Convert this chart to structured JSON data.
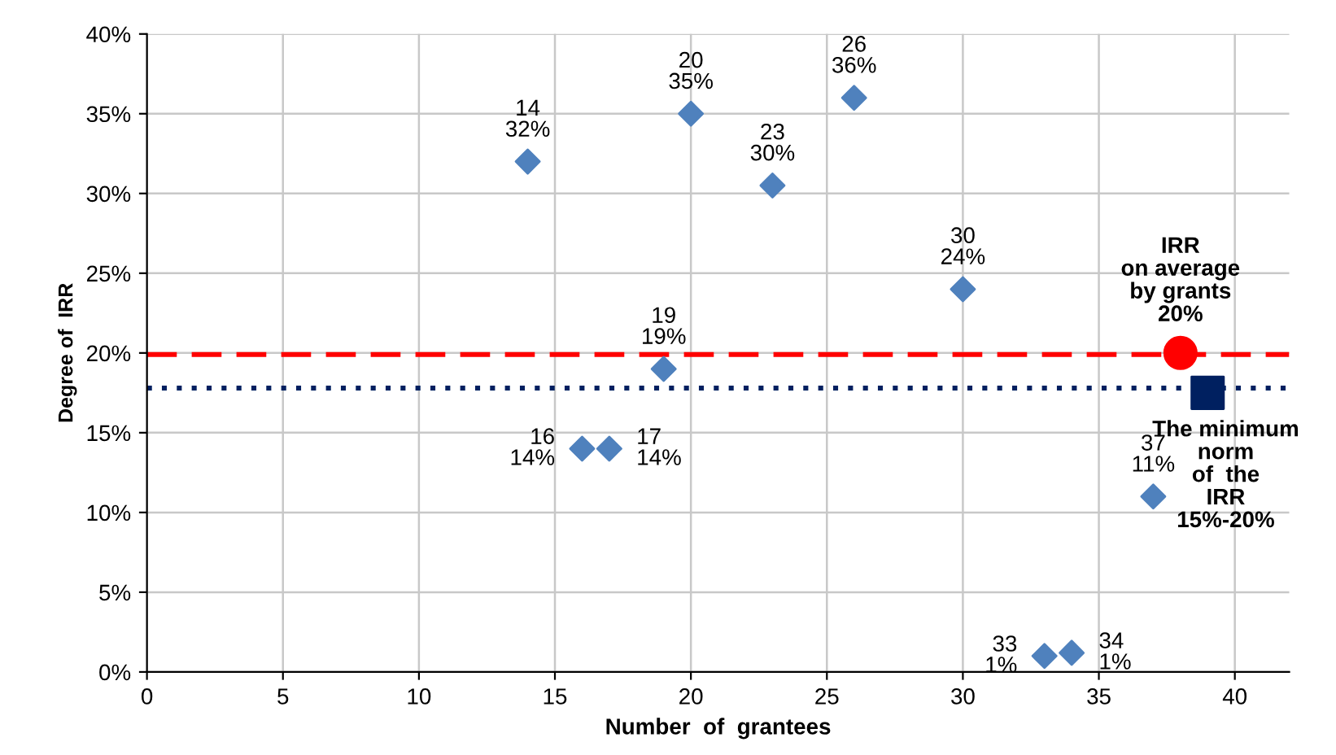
{
  "chart_data": {
    "type": "scatter",
    "xlabel": "Number  of  grantees",
    "ylabel": "Degree of  IRR",
    "xlim": [
      0,
      42
    ],
    "xticks": [
      0,
      5,
      10,
      15,
      20,
      25,
      30,
      35,
      40
    ],
    "ylim": [
      0,
      40
    ],
    "yticks": [
      {
        "value": 0,
        "label": "0%"
      },
      {
        "value": 5,
        "label": "5%"
      },
      {
        "value": 10,
        "label": "10%"
      },
      {
        "value": 15,
        "label": "15%"
      },
      {
        "value": 20,
        "label": "20%"
      },
      {
        "value": 25,
        "label": "25%"
      },
      {
        "value": 30,
        "label": "30%"
      },
      {
        "value": 35,
        "label": "35%"
      },
      {
        "value": 40,
        "label": "40%"
      }
    ],
    "grid": true,
    "series": [
      {
        "color": "#4f81bd",
        "marker": "diamond",
        "x": [
          14,
          16,
          17,
          19,
          20,
          23,
          26,
          30,
          33,
          34,
          37
        ],
        "values": [
          32,
          14,
          14,
          19,
          35,
          30.5,
          36,
          24,
          1,
          1.2,
          11
        ],
        "value_labels": [
          "14\n32%",
          "16\n14%",
          "17\n14%",
          "19\n19%",
          "20\n35%",
          "23\n30%",
          "26\n36%",
          "30\n24%",
          "33\n1%",
          "34\n1%",
          "37\n11%"
        ]
      },
      {
        "color": "#ff0000",
        "marker": "circle",
        "x": [
          38
        ],
        "values": [
          20
        ]
      },
      {
        "color": "#002060",
        "marker": "square",
        "x": [
          39
        ],
        "values": [
          17.5
        ]
      }
    ],
    "ref_lines": [
      {
        "axis": "y",
        "value": 19.9,
        "color": "#ff0000",
        "line_style": "dashed"
      },
      {
        "axis": "y",
        "value": 17.8,
        "color": "#002060",
        "line_style": "dotted"
      }
    ],
    "annotations": [
      {
        "text": "IRR\non average\nby grants\n20%",
        "x": 38,
        "y": 20
      },
      {
        "text": "The minimum\nnorm\nof  the\nIRR\n15%-20%",
        "x": 39,
        "y": 17.5
      }
    ]
  }
}
